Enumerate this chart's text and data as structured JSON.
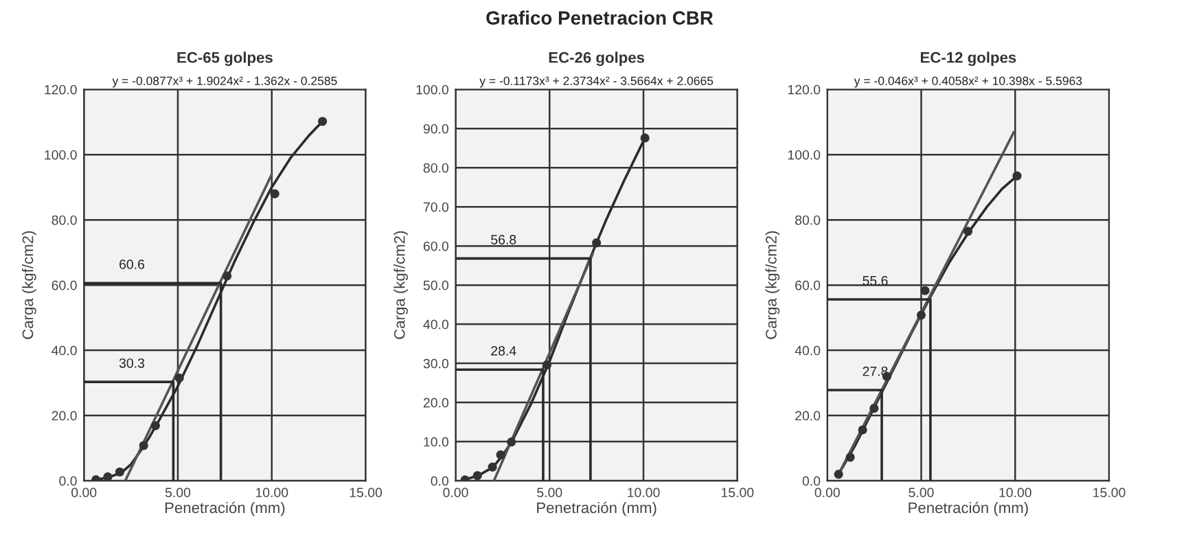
{
  "chart_data": [
    {
      "type": "other",
      "title": "Grafico Penetracion CBR"
    },
    {
      "type": "line",
      "title": "EC-65 golpes",
      "xlabel": "Penetración (mm)",
      "ylabel": "Carga (kgf/cm2)",
      "grid": true,
      "xlim": [
        0,
        15
      ],
      "ylim": [
        0,
        120
      ],
      "xticks": [
        {
          "value": 0,
          "label": "0.00"
        },
        {
          "value": 5,
          "label": "5.00"
        },
        {
          "value": 10,
          "label": "10.00"
        },
        {
          "value": 15,
          "label": "15.00"
        }
      ],
      "yticks": [
        {
          "value": 0,
          "label": "0.0"
        },
        {
          "value": 20,
          "label": "20.0"
        },
        {
          "value": 40,
          "label": "40.0"
        },
        {
          "value": 60,
          "label": "60.0"
        },
        {
          "value": 80,
          "label": "80.0"
        },
        {
          "value": 100,
          "label": "100.0"
        },
        {
          "value": 120,
          "label": "120.0"
        }
      ],
      "series": [
        {
          "type": "line",
          "color": "#2b2b2b",
          "marker": "none",
          "x": [
            0.64,
            1.3,
            2,
            2.5,
            3,
            3.5,
            4,
            5,
            6,
            7,
            8,
            9,
            10,
            11,
            12,
            12.7
          ],
          "values": [
            0.3,
            1,
            2.5,
            5,
            9,
            13.5,
            18.5,
            29,
            41,
            54,
            67,
            79,
            90,
            99,
            106,
            110.2
          ]
        },
        {
          "type": "line",
          "color": "#555555",
          "marker": "none",
          "x": [
            2.2,
            10
          ],
          "values": [
            0,
            94
          ]
        },
        {
          "type": "line",
          "color": "#2b2b2b",
          "marker": "none",
          "x": [
            0,
            4.76,
            4.76
          ],
          "values": [
            30.3,
            30.3,
            0
          ]
        },
        {
          "type": "line",
          "color": "#2b2b2b",
          "marker": "none",
          "x": [
            0,
            7.29,
            7.29
          ],
          "values": [
            60.6,
            60.6,
            0
          ]
        },
        {
          "type": "scatter",
          "color": "#333333",
          "marker": "circle",
          "x": [
            0.64,
            1.27,
            1.91,
            3.18,
            3.81,
            5.08,
            7.62,
            10.16,
            12.7
          ],
          "values": [
            0.3,
            1.2,
            2.7,
            10.8,
            16.9,
            31.5,
            62.8,
            88,
            110.2
          ]
        }
      ],
      "annotations": [
        "y = -0.0877x³ + 1.9024x² - 1.362x - 0.2585",
        {
          "text": "30.3",
          "y": 30.3
        },
        {
          "text": "60.6",
          "y": 60.6
        }
      ]
    },
    {
      "type": "line",
      "title": "EC-26 golpes",
      "xlabel": "Penetración (mm)",
      "ylabel": "Carga (kgf/cm2)",
      "grid": true,
      "xlim": [
        0,
        15
      ],
      "ylim": [
        0,
        100
      ],
      "xticks": [
        {
          "value": 0,
          "label": "0.00"
        },
        {
          "value": 5,
          "label": "5.00"
        },
        {
          "value": 10,
          "label": "10.00"
        },
        {
          "value": 15,
          "label": "15.00"
        }
      ],
      "yticks": [
        {
          "value": 0,
          "label": "0.0"
        },
        {
          "value": 10,
          "label": "10.0"
        },
        {
          "value": 20,
          "label": "20.0"
        },
        {
          "value": 30,
          "label": "30.0"
        },
        {
          "value": 40,
          "label": "40.0"
        },
        {
          "value": 50,
          "label": "50.0"
        },
        {
          "value": 60,
          "label": "60.0"
        },
        {
          "value": 70,
          "label": "70.0"
        },
        {
          "value": 80,
          "label": "80.0"
        },
        {
          "value": 90,
          "label": "90.0"
        },
        {
          "value": 100,
          "label": "100.0"
        }
      ],
      "series": [
        {
          "type": "line",
          "color": "#2b2b2b",
          "marker": "none",
          "x": [
            0.5,
            1.2,
            2,
            2.5,
            3,
            4,
            5,
            6,
            7,
            8,
            9,
            10.08
          ],
          "values": [
            0.3,
            1.3,
            3.5,
            6.5,
            10,
            19.5,
            30.5,
            43,
            55,
            66.5,
            77,
            87.6
          ]
        },
        {
          "type": "line",
          "color": "#555555",
          "marker": "none",
          "x": [
            2.04,
            7.3
          ],
          "values": [
            0,
            58
          ]
        },
        {
          "type": "line",
          "color": "#2b2b2b",
          "marker": "none",
          "x": [
            0,
            4.66,
            4.66
          ],
          "values": [
            28.4,
            28.4,
            0
          ]
        },
        {
          "type": "line",
          "color": "#2b2b2b",
          "marker": "none",
          "x": [
            0,
            7.18,
            7.18
          ],
          "values": [
            56.8,
            56.8,
            0
          ]
        },
        {
          "type": "scatter",
          "color": "#333333",
          "marker": "circle",
          "x": [
            0.5,
            1.16,
            1.96,
            2.4,
            2.97,
            4.86,
            7.5,
            10.08
          ],
          "values": [
            0.2,
            1.3,
            3.5,
            6.6,
            9.9,
            29.6,
            60.8,
            87.6
          ]
        }
      ],
      "annotations": [
        "y = -0.1173x³ + 2.3734x² - 3.5664x + 2.0665",
        {
          "text": "28.4",
          "y": 28.4
        },
        {
          "text": "56.8",
          "y": 56.8
        }
      ]
    },
    {
      "type": "line",
      "title": "EC-12 golpes",
      "xlabel": "Penetración (mm)",
      "ylabel": "Carga (kgf/cm2)",
      "grid": true,
      "xlim": [
        0,
        15
      ],
      "ylim": [
        0,
        120
      ],
      "xticks": [
        {
          "value": 0,
          "label": "0.00"
        },
        {
          "value": 5,
          "label": "5.00"
        },
        {
          "value": 10,
          "label": "10.00"
        },
        {
          "value": 15,
          "label": "15.00"
        }
      ],
      "yticks": [
        {
          "value": 0,
          "label": "0.0"
        },
        {
          "value": 20,
          "label": "20.0"
        },
        {
          "value": 40,
          "label": "40.0"
        },
        {
          "value": 60,
          "label": "60.0"
        },
        {
          "value": 80,
          "label": "80.0"
        },
        {
          "value": 100,
          "label": "100.0"
        },
        {
          "value": 120,
          "label": "120.0"
        }
      ],
      "series": [
        {
          "type": "line",
          "color": "#2b2b2b",
          "marker": "none",
          "x": [
            0.6,
            1.5,
            2.5,
            3.5,
            4.5,
            5.5,
            6.5,
            7.5,
            8.5,
            9.3,
            10.1
          ],
          "values": [
            2,
            11,
            22.5,
            34,
            45.5,
            56.5,
            67,
            76,
            84,
            89.5,
            93.5
          ]
        },
        {
          "type": "line",
          "color": "#555555",
          "marker": "none",
          "x": [
            0.6,
            9.93
          ],
          "values": [
            2,
            106.9
          ]
        },
        {
          "type": "line",
          "color": "#2b2b2b",
          "marker": "none",
          "x": [
            0,
            2.9,
            2.9
          ],
          "values": [
            27.8,
            27.8,
            0
          ]
        },
        {
          "type": "line",
          "color": "#2b2b2b",
          "marker": "none",
          "x": [
            0,
            5.49,
            5.49
          ],
          "values": [
            55.6,
            55.6,
            0
          ]
        },
        {
          "type": "scatter",
          "color": "#333333",
          "marker": "circle",
          "x": [
            0.6,
            1.22,
            1.88,
            2.49,
            3.17,
            5.0,
            5.2,
            7.49,
            10.1
          ],
          "values": [
            2,
            7.2,
            15.6,
            22.2,
            32,
            50.8,
            58.3,
            76.5,
            93.5
          ]
        }
      ],
      "annotations": [
        "y = -0.046x³ + 0.4058x² + 10.398x - 5.5963",
        {
          "text": "27.8",
          "y": 27.8
        },
        {
          "text": "55.6",
          "y": 55.6
        }
      ]
    }
  ]
}
